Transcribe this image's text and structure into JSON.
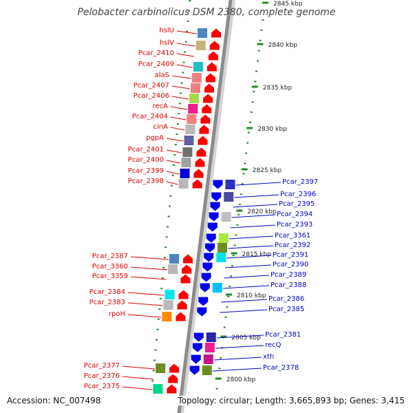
{
  "title": "Pelobacter carbinolicus DSM 2380, complete genome",
  "footer": {
    "accession": "Accession: NC_007498",
    "summary": "Topology: circular; Length: 3,665,893 bp; Genes: 3,415"
  },
  "colors": {
    "forward_label": "#dd0000",
    "reverse_label": "#0000cc",
    "forward_arrow": "#ff0000",
    "reverse_arrow": "#0000ee",
    "tick": "#228822",
    "backbone": "#8c8c8c"
  },
  "ruler": {
    "unit": "kbp",
    "ticks": [
      {
        "label": "2845 kbp"
      },
      {
        "label": "2840 kbp"
      },
      {
        "label": "2835 kbp"
      },
      {
        "label": "2830 kbp"
      },
      {
        "label": "2825 kbp"
      },
      {
        "label": "2820 kbp"
      },
      {
        "label": "2815 kbp"
      },
      {
        "label": "2810 kbp"
      },
      {
        "label": "2805 kbp"
      },
      {
        "label": "2800 kbp"
      }
    ]
  },
  "forward_genes": [
    {
      "name": "hslU",
      "cog": "#4a86c0"
    },
    {
      "name": "hslV",
      "cog": "#c6b67a"
    },
    {
      "name": "Pcar_2410",
      "cog": ""
    },
    {
      "name": "Pcar_2409",
      "cog": "#20c0c0"
    },
    {
      "name": "alaS",
      "cog": "#f08080"
    },
    {
      "name": "Pcar_2407",
      "cog": "#f08080"
    },
    {
      "name": "Pcar_2406",
      "cog": "#a8d84a"
    },
    {
      "name": "recA",
      "cog": "#ee1c8e"
    },
    {
      "name": "Pcar_2404",
      "cog": "#f08080"
    },
    {
      "name": "cinA",
      "cog": "#b8b8b8"
    },
    {
      "name": "pgpA",
      "cog": "#6060a0"
    },
    {
      "name": "Pcar_2401",
      "cog": "#707070"
    },
    {
      "name": "Pcar_2400",
      "cog": "#a0a0a0"
    },
    {
      "name": "Pcar_2399",
      "cog": "#0000dd"
    },
    {
      "name": "Pcar_2398",
      "cog": "#b8b8b8"
    },
    {
      "name": "Pcar_2387",
      "cog": "#4a86c0"
    },
    {
      "name": "Pcar_3360",
      "cog": "#b8b8b8"
    },
    {
      "name": "Pcar_3359",
      "cog": ""
    },
    {
      "name": "Pcar_2384",
      "cog": "#00e5ee"
    },
    {
      "name": "Pcar_2383",
      "cog": "#b8b8b8"
    },
    {
      "name": "rpoH",
      "cog": "#ff8c00"
    },
    {
      "name": "Pcar_2377",
      "cog": "#6b8e23"
    },
    {
      "name": "Pcar_2376",
      "cog": ""
    },
    {
      "name": "Pcar_2375",
      "cog": "#00d890"
    }
  ],
  "reverse_genes": [
    {
      "name": "Pcar_2397",
      "cog": "#3030c0"
    },
    {
      "name": "Pcar_2396",
      "cog": "#4a4aa0"
    },
    {
      "name": "Pcar_2395",
      "cog": ""
    },
    {
      "name": "Pcar_2394",
      "cog": "#c0c0c0"
    },
    {
      "name": "Pcar_2393",
      "cog": ""
    },
    {
      "name": "Pcar_3361",
      "cog": "#a8e840"
    },
    {
      "name": "Pcar_2392",
      "cog": "#6b8e23"
    },
    {
      "name": "Pcar_2391",
      "cog": "#00e5ee"
    },
    {
      "name": "Pcar_2390",
      "cog": ""
    },
    {
      "name": "Pcar_2389",
      "cog": ""
    },
    {
      "name": "Pcar_2388",
      "cog": "#00bfff"
    },
    {
      "name": "Pcar_2386",
      "cog": ""
    },
    {
      "name": "Pcar_2385",
      "cog": ""
    },
    {
      "name": "Pcar_2381",
      "cog": "#2a2aa0"
    },
    {
      "name": "recQ",
      "cog": "#ee1c8e"
    },
    {
      "name": "xth",
      "cog": "#c71585"
    },
    {
      "name": "Pcar_2378",
      "cog": "#6b8e23"
    }
  ]
}
